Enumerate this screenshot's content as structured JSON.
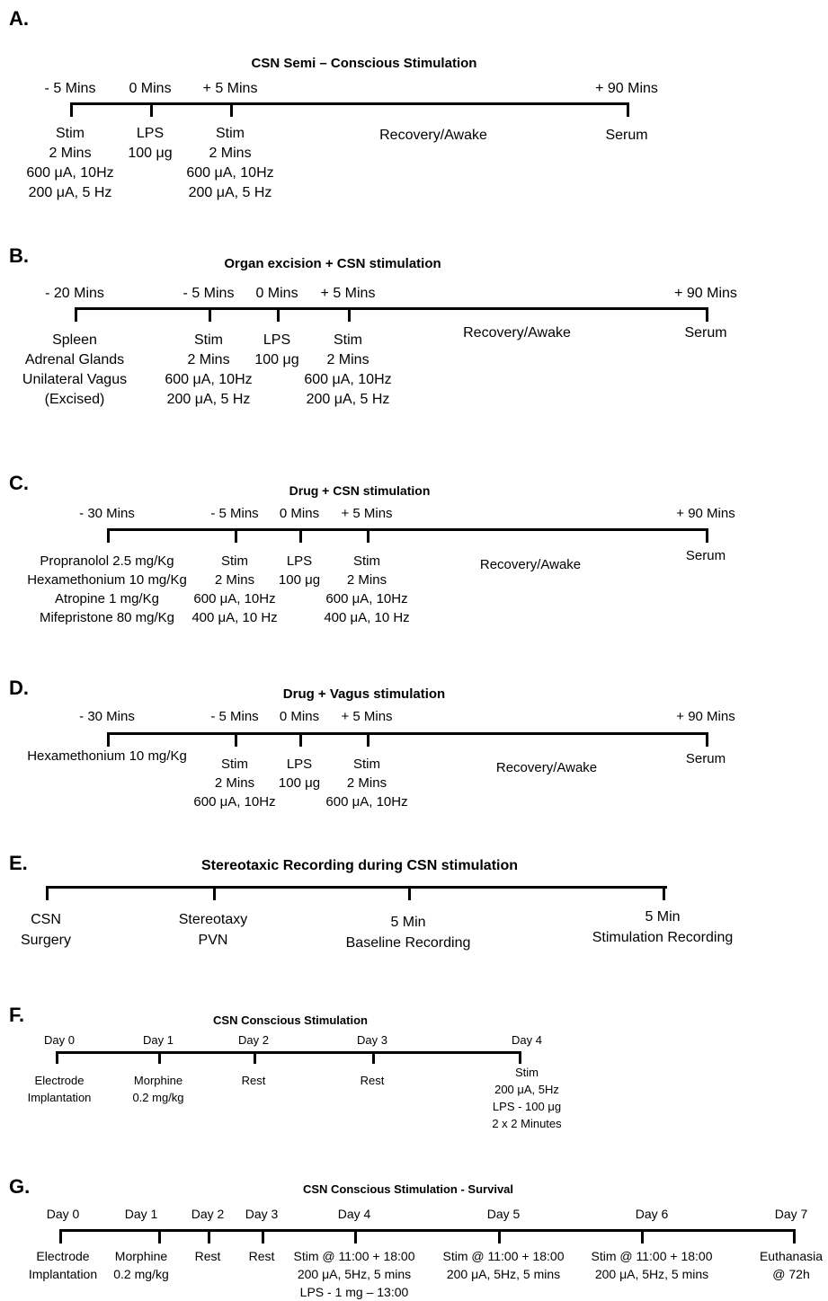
{
  "panels": [
    {
      "label": "A.",
      "title": "CSN Semi – Conscious Stimulation",
      "events": [
        {
          "top": "- 5 Mins",
          "bottom": [
            "Stim",
            "2 Mins",
            "600 μA, 10Hz",
            "200 μA, 5 Hz"
          ]
        },
        {
          "top": "0 Mins",
          "bottom": [
            "LPS",
            "100 μg"
          ]
        },
        {
          "top": "+ 5 Mins",
          "bottom": [
            "Stim",
            "2 Mins",
            "600 μA, 10Hz",
            "200 μA, 5 Hz"
          ]
        },
        {
          "top": "",
          "bottom": [
            "Recovery/Awake"
          ]
        },
        {
          "top": "+ 90 Mins",
          "bottom": [
            "Serum"
          ]
        }
      ]
    },
    {
      "label": "B.",
      "title": "Organ excision + CSN stimulation",
      "events": [
        {
          "top": "- 20 Mins",
          "bottom": [
            "Spleen",
            "Adrenal Glands",
            "Unilateral Vagus",
            "(Excised)"
          ]
        },
        {
          "top": "- 5 Mins",
          "bottom": [
            "Stim",
            "2 Mins",
            "600 μA, 10Hz",
            "200 μA, 5 Hz"
          ]
        },
        {
          "top": "0 Mins",
          "bottom": [
            "LPS",
            "100 μg"
          ]
        },
        {
          "top": "+ 5 Mins",
          "bottom": [
            "Stim",
            "2 Mins",
            "600 μA, 10Hz",
            "200 μA, 5 Hz"
          ]
        },
        {
          "top": "",
          "bottom": [
            "Recovery/Awake"
          ]
        },
        {
          "top": "+ 90 Mins",
          "bottom": [
            "Serum"
          ]
        }
      ]
    },
    {
      "label": "C.",
      "title": "Drug + CSN stimulation",
      "events": [
        {
          "top": "- 30 Mins",
          "bottom": [
            "Propranolol 2.5 mg/Kg",
            "Hexamethonium 10 mg/Kg",
            "Atropine 1 mg/Kg",
            "Mifepristone 80 mg/Kg"
          ]
        },
        {
          "top": "- 5 Mins",
          "bottom": [
            "Stim",
            "2 Mins",
            "600 μA, 10Hz",
            "400 μA, 10 Hz"
          ]
        },
        {
          "top": "0 Mins",
          "bottom": [
            "LPS",
            "100 μg"
          ]
        },
        {
          "top": "+ 5 Mins",
          "bottom": [
            "Stim",
            "2 Mins",
            "600 μA, 10Hz",
            "400 μA, 10 Hz"
          ]
        },
        {
          "top": "",
          "bottom": [
            "Recovery/Awake"
          ]
        },
        {
          "top": "+ 90 Mins",
          "bottom": [
            "Serum"
          ]
        }
      ]
    },
    {
      "label": "D.",
      "title": "Drug + Vagus stimulation",
      "events": [
        {
          "top": "- 30 Mins",
          "bottom": [
            "Hexamethonium 10 mg/Kg"
          ]
        },
        {
          "top": "- 5 Mins",
          "bottom": [
            "Stim",
            "2 Mins",
            "600 μA, 10Hz"
          ]
        },
        {
          "top": "0 Mins",
          "bottom": [
            "LPS",
            "100 μg"
          ]
        },
        {
          "top": "+ 5 Mins",
          "bottom": [
            "Stim",
            "2 Mins",
            "600 μA, 10Hz"
          ]
        },
        {
          "top": "",
          "bottom": [
            "Recovery/Awake"
          ]
        },
        {
          "top": "+ 90 Mins",
          "bottom": [
            "Serum"
          ]
        }
      ]
    },
    {
      "label": "E.",
      "title": "Stereotaxic Recording during CSN stimulation",
      "events": [
        {
          "top": "",
          "bottom": [
            "CSN",
            "Surgery"
          ]
        },
        {
          "top": "",
          "bottom": [
            "Stereotaxy",
            "PVN"
          ]
        },
        {
          "top": "",
          "bottom": [
            "5 Min",
            "Baseline Recording"
          ]
        },
        {
          "top": "",
          "bottom": [
            "5 Min",
            "Stimulation Recording"
          ]
        }
      ]
    },
    {
      "label": "F.",
      "title": "CSN Conscious Stimulation",
      "events": [
        {
          "top": "Day 0",
          "bottom": [
            "Electrode",
            "Implantation"
          ]
        },
        {
          "top": "Day 1",
          "bottom": [
            "Morphine",
            "0.2 mg/kg"
          ]
        },
        {
          "top": "Day 2",
          "bottom": [
            "Rest"
          ]
        },
        {
          "top": "Day 3",
          "bottom": [
            "Rest"
          ]
        },
        {
          "top": "Day 4",
          "bottom": [
            "Stim",
            "200 μA, 5Hz",
            "LPS - 100 μg",
            "2 x 2 Minutes"
          ]
        }
      ]
    },
    {
      "label": "G.",
      "title": "CSN Conscious Stimulation - Survival",
      "events": [
        {
          "top": "Day 0",
          "bottom": [
            "Electrode",
            "Implantation"
          ]
        },
        {
          "top": "Day 1",
          "bottom": [
            "Morphine",
            "0.2 mg/kg"
          ]
        },
        {
          "top": "Day 2",
          "bottom": [
            "Rest"
          ]
        },
        {
          "top": "Day 3",
          "bottom": [
            "Rest"
          ]
        },
        {
          "top": "Day 4",
          "bottom": [
            "Stim @ 11:00 + 18:00",
            "200 μA, 5Hz, 5 mins",
            "LPS - 1 mg – 13:00"
          ]
        },
        {
          "top": "Day 5",
          "bottom": [
            "Stim @ 11:00 + 18:00",
            "200 μA, 5Hz, 5 mins"
          ]
        },
        {
          "top": "Day 6",
          "bottom": [
            "Stim @ 11:00 + 18:00",
            "200 μA, 5Hz, 5 mins"
          ]
        },
        {
          "top": "Day 7",
          "bottom": [
            "Euthanasia",
            "@ 72h"
          ]
        }
      ]
    }
  ]
}
